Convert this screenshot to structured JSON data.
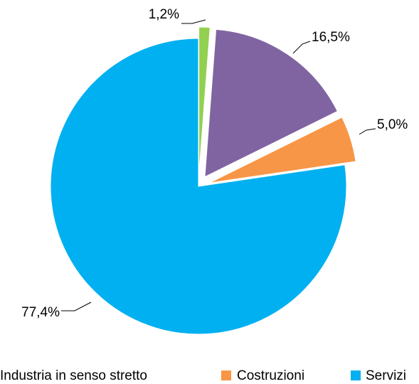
{
  "chart_data": {
    "type": "pie",
    "categories": [
      null,
      "Industria in senso stretto",
      "Costruzioni",
      "Servizi"
    ],
    "values": [
      1.2,
      16.5,
      5.0,
      77.4
    ],
    "value_labels": [
      "1,2%",
      "16,5%",
      "5,0%",
      "77,4%"
    ],
    "colors": [
      "#92d050",
      "#8064a2",
      "#f79646",
      "#00b0f0"
    ],
    "exploded": [
      true,
      true,
      true,
      false
    ],
    "legend": "bottom"
  }
}
